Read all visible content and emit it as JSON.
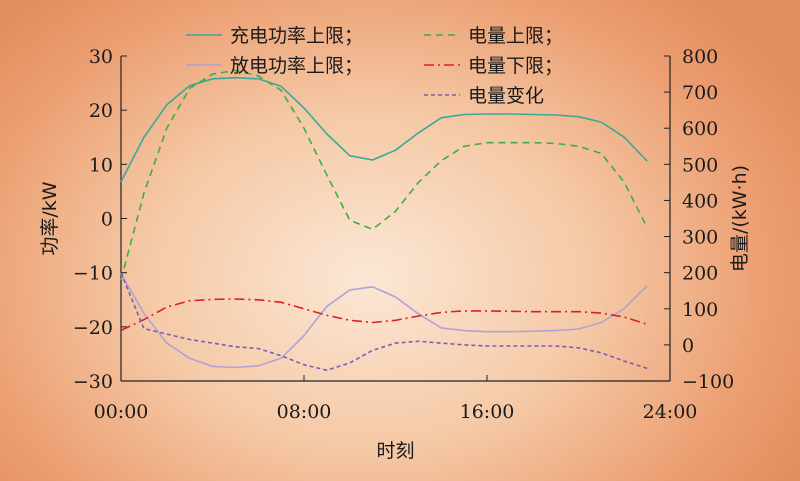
{
  "chart_data": {
    "type": "line",
    "xlabel": "时刻",
    "ylabel_left": "功率/kW",
    "ylabel_right": "电量/(kW·h)",
    "x_ticks": [
      "00:00",
      "08:00",
      "16:00",
      "24:00"
    ],
    "x_range": [
      0,
      24
    ],
    "y_left_range": [
      -30,
      30
    ],
    "y_left_ticks": [
      -30,
      -20,
      -10,
      0,
      10,
      20,
      30
    ],
    "y_right_range": [
      -100,
      800
    ],
    "y_right_ticks": [
      -100,
      0,
      100,
      200,
      300,
      400,
      500,
      600,
      700,
      800
    ],
    "x": [
      0,
      1,
      2,
      3,
      4,
      5,
      6,
      7,
      8,
      9,
      10,
      11,
      12,
      13,
      14,
      15,
      16,
      17,
      18,
      19,
      20,
      21,
      22,
      23
    ],
    "series": [
      {
        "name": "充电功率上限；",
        "axis": "left",
        "color": "#3aa89a",
        "dash": "solid",
        "values": [
          6.8,
          15.0,
          21.0,
          24.5,
          25.8,
          26.0,
          25.8,
          24.4,
          20.4,
          15.6,
          11.6,
          10.8,
          12.6,
          15.8,
          18.6,
          19.2,
          19.3,
          19.3,
          19.2,
          19.1,
          18.8,
          17.8,
          15.0,
          10.6
        ]
      },
      {
        "name": "放电功率上限；",
        "axis": "left",
        "color": "#b0a2d6",
        "dash": "solid",
        "values": [
          -10.2,
          -17.5,
          -23.0,
          -25.8,
          -27.3,
          -27.5,
          -27.2,
          -25.8,
          -21.6,
          -16.2,
          -13.2,
          -12.6,
          -14.5,
          -17.6,
          -20.2,
          -20.7,
          -20.9,
          -20.9,
          -20.8,
          -20.7,
          -20.4,
          -19.2,
          -16.6,
          -12.4
        ]
      },
      {
        "name": "电量上限；",
        "axis": "right",
        "color": "#3fae3f",
        "dash": "7,5",
        "values": [
          180,
          420,
          600,
          710,
          750,
          760,
          745,
          705,
          600,
          470,
          345,
          320,
          370,
          450,
          510,
          550,
          560,
          560,
          560,
          558,
          550,
          530,
          450,
          325
        ]
      },
      {
        "name": "电量下限；",
        "axis": "right",
        "color": "#dd2020",
        "dash": "10,4,2,4",
        "values": [
          40,
          70,
          105,
          122,
          126,
          127,
          125,
          118,
          100,
          82,
          68,
          62,
          68,
          80,
          90,
          94,
          94,
          93,
          92,
          92,
          92,
          88,
          77,
          57
        ]
      },
      {
        "name": "电量变化",
        "axis": "right",
        "color": "#7a5fb3",
        "dash": "4,3",
        "values": [
          200,
          45,
          30,
          15,
          5,
          -5,
          -10,
          -30,
          -55,
          -70,
          -50,
          -15,
          5,
          10,
          5,
          0,
          -3,
          -3,
          -3,
          -3,
          -8,
          -22,
          -45,
          -65
        ]
      }
    ]
  }
}
